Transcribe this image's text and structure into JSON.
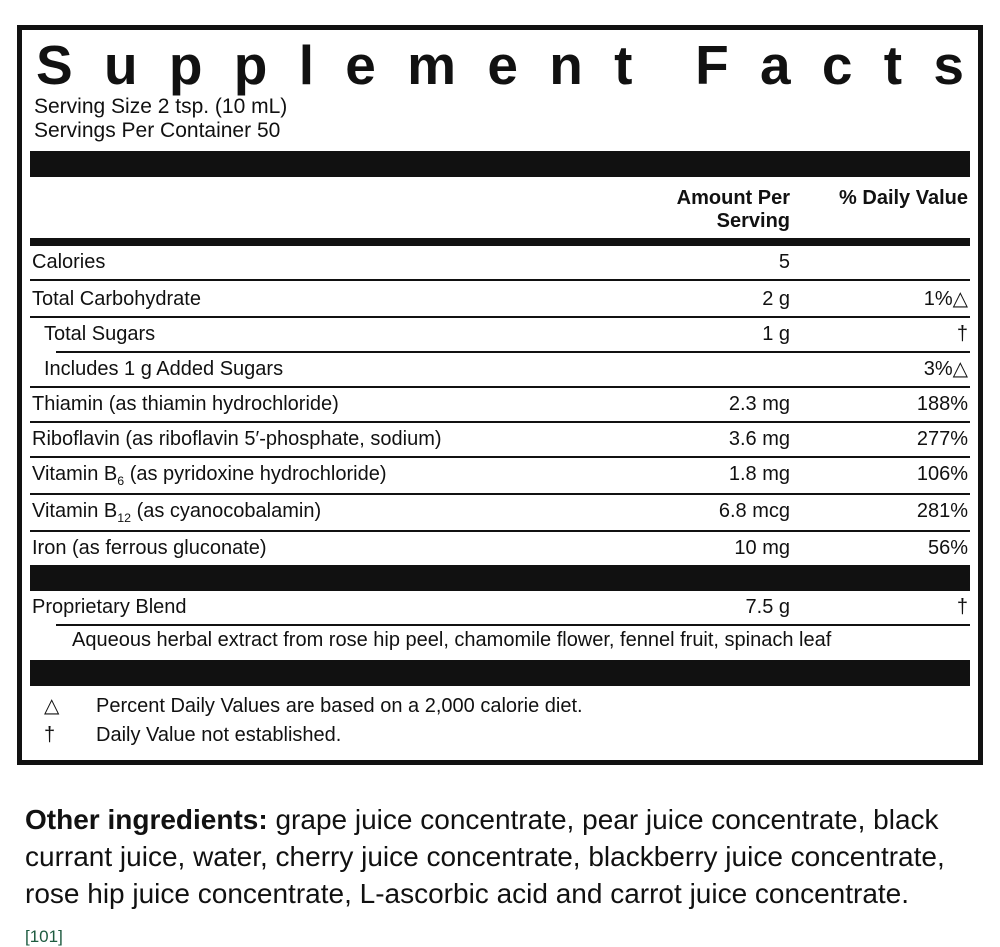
{
  "panel": {
    "title": "Supplement Facts",
    "serving_size": "Serving Size 2 tsp. (10 mL)",
    "servings_per_container": "Servings Per Container 50",
    "columns": {
      "amount": "Amount Per Serving",
      "daily_value": "% Daily Value"
    },
    "rows": [
      {
        "name": "Calories",
        "amount": "5",
        "dv": "",
        "indent": 0
      },
      {
        "name": "Total Carbohydrate",
        "amount": "2 g",
        "dv": "1%△",
        "indent": 0
      },
      {
        "name": "Total Sugars",
        "amount": "1 g",
        "dv": "†",
        "indent": 1
      },
      {
        "name": "Includes 1 g Added Sugars",
        "amount": "",
        "dv": "3%△",
        "indent": 1
      },
      {
        "name": "Thiamin (as thiamin hydrochloride)",
        "amount": "2.3 mg",
        "dv": "188%",
        "indent": 0
      },
      {
        "name": "Riboflavin (as riboflavin 5′-phosphate, sodium)",
        "amount": "3.6 mg",
        "dv": "277%",
        "indent": 0
      },
      {
        "name": "Vitamin B~6~ (as pyridoxine hydrochloride)",
        "amount": "1.8 mg",
        "dv": "106%",
        "indent": 0
      },
      {
        "name": "Vitamin B~12~ (as cyanocobalamin)",
        "amount": "6.8 mcg",
        "dv": "281%",
        "indent": 0
      },
      {
        "name": "Iron (as ferrous gluconate)",
        "amount": "10 mg",
        "dv": "56%",
        "indent": 0
      }
    ],
    "blend": {
      "name": "Proprietary Blend",
      "amount": "7.5 g",
      "dv": "†",
      "description": "Aqueous herbal extract from rose hip peel, chamomile flower, fennel fruit, spinach leaf"
    },
    "footnotes": [
      {
        "symbol": "△",
        "text": "Percent Daily Values are based on a 2,000 calorie diet."
      },
      {
        "symbol": "†",
        "text": "Daily Value not established."
      }
    ]
  },
  "other_ingredients": {
    "heading": "Other ingredients:",
    "text": " grape juice concentrate, pear juice concentrate, black currant juice, water, cherry juice concentrate, blackberry juice concentrate, rose hip juice concentrate, L-ascorbic acid and carrot juice concentrate."
  },
  "reference": "[101]",
  "colors": {
    "reference_green": "#1e5b40",
    "rule_black": "#111111"
  }
}
